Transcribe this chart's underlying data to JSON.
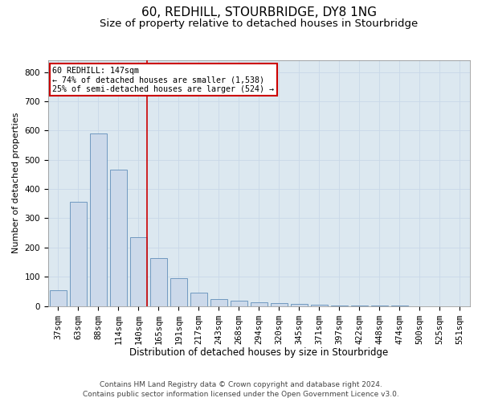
{
  "title": "60, REDHILL, STOURBRIDGE, DY8 1NG",
  "subtitle": "Size of property relative to detached houses in Stourbridge",
  "xlabel": "Distribution of detached houses by size in Stourbridge",
  "ylabel": "Number of detached properties",
  "footer_line1": "Contains HM Land Registry data © Crown copyright and database right 2024.",
  "footer_line2": "Contains public sector information licensed under the Open Government Licence v3.0.",
  "bar_labels": [
    "37sqm",
    "63sqm",
    "88sqm",
    "114sqm",
    "140sqm",
    "165sqm",
    "191sqm",
    "217sqm",
    "243sqm",
    "268sqm",
    "294sqm",
    "320sqm",
    "345sqm",
    "371sqm",
    "397sqm",
    "422sqm",
    "448sqm",
    "474sqm",
    "500sqm",
    "525sqm",
    "551sqm"
  ],
  "bar_values": [
    55,
    355,
    590,
    465,
    235,
    165,
    95,
    45,
    25,
    18,
    14,
    10,
    7,
    4,
    2,
    1.5,
    1,
    0.5,
    0.3,
    0.2,
    0.1
  ],
  "bar_color": "#ccd9ea",
  "bar_edge_color": "#7099c0",
  "annotation_line1": "60 REDHILL: 147sqm",
  "annotation_line2": "← 74% of detached houses are smaller (1,538)",
  "annotation_line3": "25% of semi-detached houses are larger (524) →",
  "annotation_box_color": "#ffffff",
  "annotation_box_edge_color": "#cc0000",
  "redline_color": "#cc0000",
  "grid_color": "#c8d8e8",
  "background_color": "#dce8f0",
  "ylim": [
    0,
    840
  ],
  "yticks": [
    0,
    100,
    200,
    300,
    400,
    500,
    600,
    700,
    800
  ],
  "title_fontsize": 11,
  "subtitle_fontsize": 9.5,
  "tick_fontsize": 7.5,
  "ylabel_fontsize": 8,
  "xlabel_fontsize": 8.5,
  "footer_fontsize": 6.5
}
